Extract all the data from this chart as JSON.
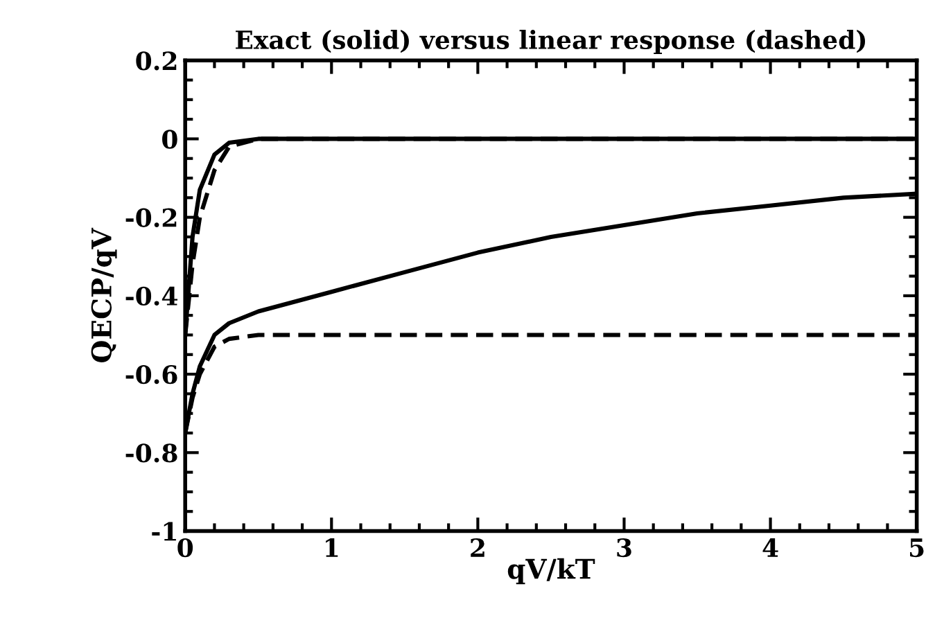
{
  "chart_data": {
    "type": "line",
    "title": "Exact (solid) versus linear response (dashed)",
    "xlabel": "qV/kT",
    "ylabel": "QECP/qV",
    "xlim": [
      0,
      5
    ],
    "ylim": [
      -1,
      0.2
    ],
    "xticks": [
      0,
      1,
      2,
      3,
      4,
      5
    ],
    "yticks": [
      -1,
      -0.8,
      -0.6,
      -0.4,
      -0.2,
      0,
      0.2
    ],
    "grid": false,
    "legend": false,
    "marker": "none",
    "series": [
      {
        "color": "#000000",
        "line_style": "solid",
        "x": [
          0,
          0.05,
          0.1,
          0.2,
          0.3,
          0.5,
          5
        ],
        "values": [
          -0.5,
          -0.25,
          -0.13,
          -0.04,
          -0.01,
          0,
          0
        ]
      },
      {
        "color": "#000000",
        "line_style": "dashed",
        "x": [
          0,
          0.05,
          0.1,
          0.2,
          0.3,
          0.5,
          5
        ],
        "values": [
          -0.5,
          -0.32,
          -0.2,
          -0.08,
          -0.02,
          0,
          0
        ]
      },
      {
        "color": "#000000",
        "line_style": "solid",
        "x": [
          0,
          0.05,
          0.1,
          0.2,
          0.3,
          0.5,
          1,
          1.5,
          2,
          2.5,
          3,
          3.5,
          4,
          4.5,
          5
        ],
        "values": [
          -0.75,
          -0.65,
          -0.58,
          -0.5,
          -0.47,
          -0.44,
          -0.39,
          -0.34,
          -0.29,
          -0.25,
          -0.22,
          -0.19,
          -0.17,
          -0.15,
          -0.14
        ]
      },
      {
        "color": "#000000",
        "line_style": "dashed",
        "x": [
          0,
          0.05,
          0.1,
          0.2,
          0.3,
          0.5,
          5
        ],
        "values": [
          -0.75,
          -0.66,
          -0.6,
          -0.53,
          -0.51,
          -0.5,
          -0.5
        ]
      }
    ]
  }
}
